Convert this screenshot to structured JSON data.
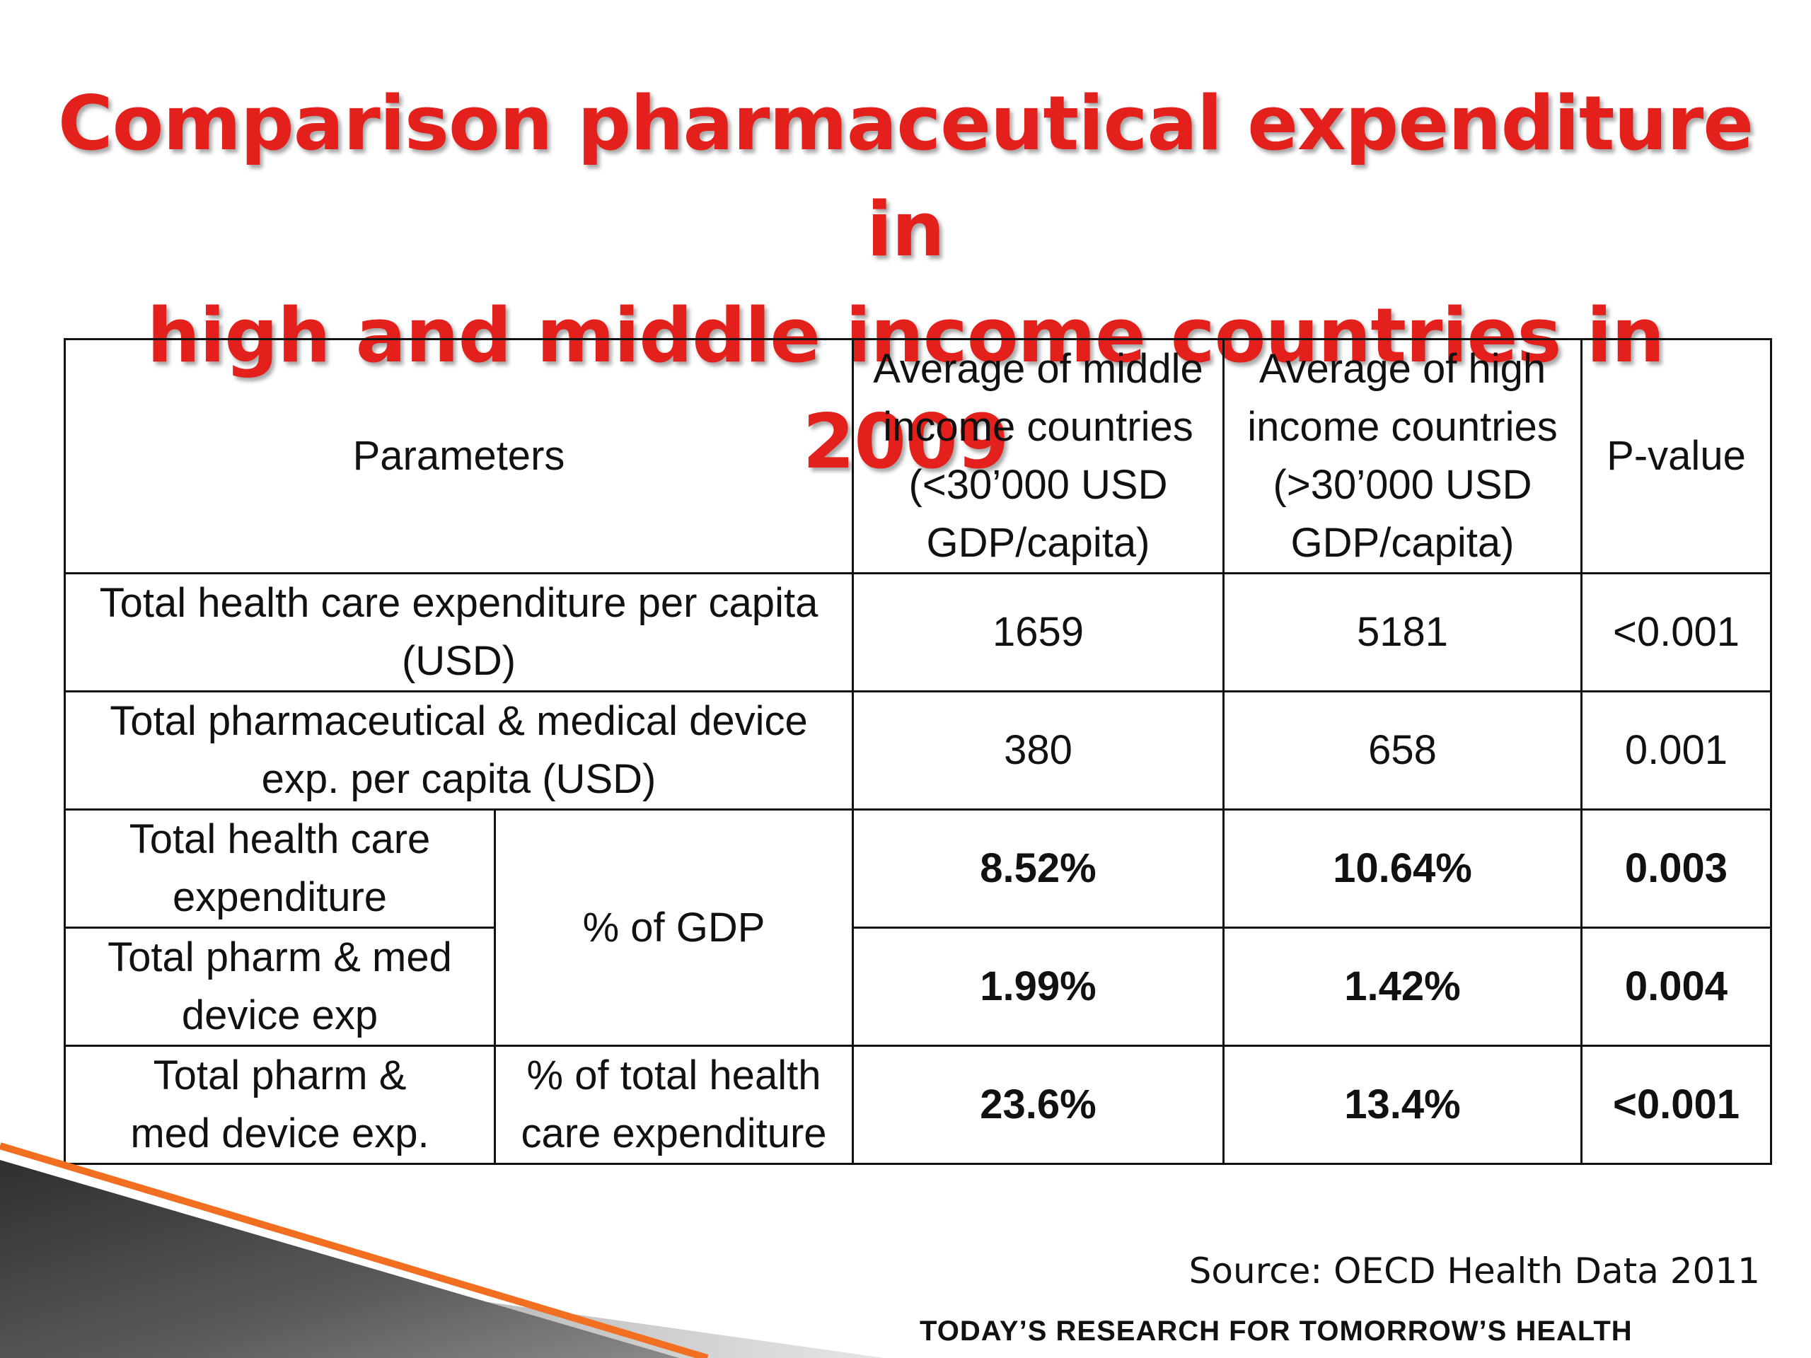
{
  "title": {
    "line1": "Comparison pharmaceutical expenditure in",
    "line2": "high and middle income countries in 2009"
  },
  "table": {
    "header": {
      "parameters": "Parameters",
      "middle": [
        "Average of middle",
        "income countries",
        "(<30’000 USD",
        "GDP/capita)"
      ],
      "high": [
        "Average of high",
        "income countries",
        "(>30’000 USD",
        "GDP/capita)"
      ],
      "pvalue": "P-value"
    },
    "rows": [
      {
        "param_lines": [
          "Total health care expenditure per capita",
          "(USD)"
        ],
        "middle": "1659",
        "high": "5181",
        "pvalue": "<0.001"
      },
      {
        "param_lines": [
          "Total pharmaceutical & medical device",
          "exp. per capita (USD)"
        ],
        "middle": "380",
        "high": "658",
        "pvalue": "0.001"
      },
      {
        "param_lines": [
          "Total health care",
          "expenditure"
        ],
        "middle": "8.52%",
        "high": "10.64%",
        "pvalue": "0.003"
      },
      {
        "param_lines": [
          "Total pharm & med",
          "device exp"
        ],
        "middle": "1.99%",
        "high": "1.42%",
        "pvalue": "0.004"
      },
      {
        "param_lines": [
          "Total pharm &",
          "med device exp."
        ],
        "unit_lines": [
          "% of total health",
          "care expenditure"
        ],
        "middle": "23.6%",
        "high": "13.4%",
        "pvalue": "<0.001"
      }
    ],
    "gdp_unit": "% of GDP"
  },
  "source": "Source: OECD Health Data 2011",
  "tagline": "TODAY’S RESEARCH FOR TOMORROW’S HEALTH",
  "colors": {
    "title": "#e3201b",
    "accent_orange": "#f26f21",
    "decor_dark": "#3a3a3a"
  }
}
